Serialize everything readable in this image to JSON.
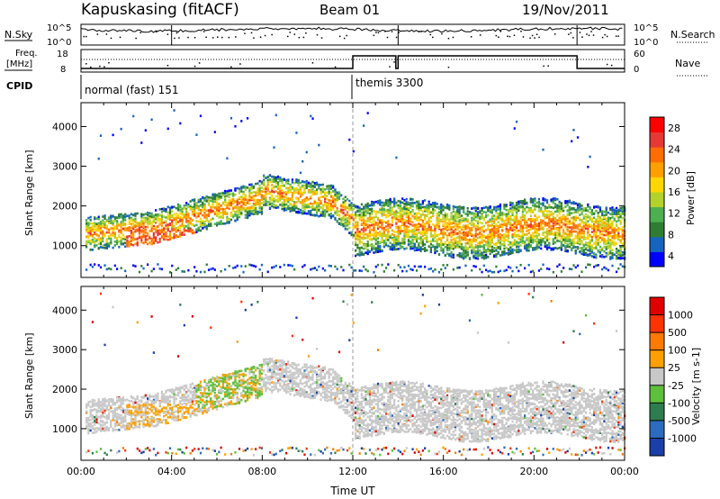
{
  "header": {
    "station": "Kapuskasing (fitACF)",
    "beam": "Beam 01",
    "date": "19/Nov/2011"
  },
  "summary": {
    "nsky_label": "N.Sky",
    "nsearch_label": "N.Search",
    "freq_label": "Freq.",
    "freq_unit": "[MHz]",
    "nave_label": "Nave",
    "cpid_label": "CPID",
    "noise_ticks": [
      "10^5",
      "10^0"
    ],
    "noise_right_ticks": [
      "10^5",
      "10^0"
    ],
    "freq_ticks": [
      "18",
      "8"
    ],
    "nave_ticks": [
      "60",
      "0"
    ],
    "cpid_modes": [
      {
        "label": "normal (fast) 151",
        "start_hour": 0.0
      },
      {
        "label": "themis 3300",
        "start_hour": 12.0
      }
    ]
  },
  "chart_data": [
    {
      "type": "heatmap",
      "name": "power",
      "xlabel": "",
      "ylabel": "Slant Range [km]",
      "xlim": [
        0,
        24
      ],
      "ylim": [
        200,
        4600
      ],
      "yticks": [
        1000,
        2000,
        3000,
        4000
      ],
      "colorbar": {
        "label": "Power [dB]",
        "ticks": [
          "28",
          "24",
          "20",
          "16",
          "12",
          "8",
          "4"
        ],
        "colors": [
          "#0000ff",
          "#1565c0",
          "#2e7d32",
          "#4caf50",
          "#b3d22c",
          "#ffd600",
          "#ffa000",
          "#ff6d00",
          "#e53935",
          "#ff0000"
        ]
      }
    },
    {
      "type": "heatmap",
      "name": "velocity",
      "xlabel": "Time UT",
      "ylabel": "Slant Range [km]",
      "xlim": [
        0,
        24
      ],
      "ylim": [
        200,
        4600
      ],
      "yticks": [
        1000,
        2000,
        3000,
        4000
      ],
      "xticks": [
        "00:00",
        "04:00",
        "08:00",
        "12:00",
        "16:00",
        "20:00",
        "00:00"
      ],
      "colorbar": {
        "label": "Velocity [m s-1]",
        "ticks": [
          "1000",
          "500",
          "100",
          "25",
          "-25",
          "-100",
          "-500",
          "-1000"
        ],
        "colors": [
          "#1a3fa8",
          "#2b6cc0",
          "#2e7d4f",
          "#5cc03a",
          "#c8c8c8",
          "#ffa000",
          "#ff7a00",
          "#ff3300",
          "#e00000"
        ]
      }
    }
  ]
}
